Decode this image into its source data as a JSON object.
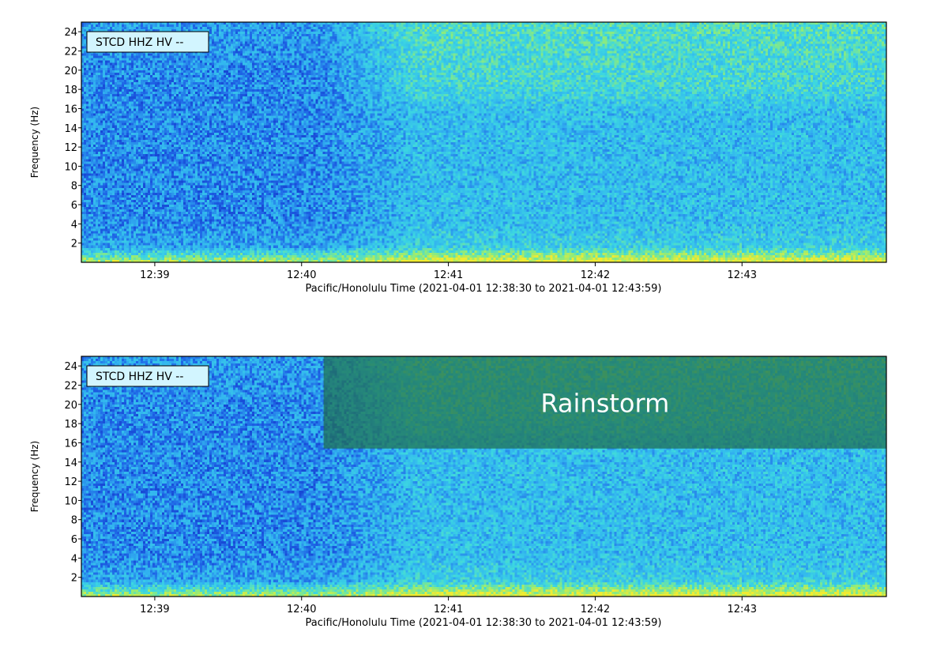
{
  "chart_data": [
    {
      "type": "heatmap",
      "station_label": "STCD HHZ HV --",
      "ylabel": "Frequency (Hz)",
      "xlabel": "Pacific/Honolulu Time (2021-04-01 12:38:30 to 2021-04-01 12:43:59)",
      "x_range": [
        "12:38:30",
        "12:43:59"
      ],
      "ylim": [
        0,
        25
      ],
      "yticks": [
        2,
        4,
        6,
        8,
        10,
        12,
        14,
        16,
        18,
        20,
        22,
        24
      ],
      "xticks": [
        "12:39",
        "12:40",
        "12:41",
        "12:42",
        "12:43"
      ],
      "colormap": [
        "#0a14b4",
        "#1e64e6",
        "#32b4f0",
        "#3cd7e1",
        "#8ceb7d",
        "#f0eb32"
      ],
      "annotations": []
    },
    {
      "type": "heatmap",
      "station_label": "STCD HHZ HV --",
      "ylabel": "Frequency (Hz)",
      "xlabel": "Pacific/Honolulu Time (2021-04-01 12:38:30 to 2021-04-01 12:43:59)",
      "x_range": [
        "12:38:30",
        "12:43:59"
      ],
      "ylim": [
        0,
        25
      ],
      "yticks": [
        2,
        4,
        6,
        8,
        10,
        12,
        14,
        16,
        18,
        20,
        22,
        24
      ],
      "xticks": [
        "12:39",
        "12:40",
        "12:41",
        "12:42",
        "12:43"
      ],
      "colormap": [
        "#0a14b4",
        "#1e64e6",
        "#32b4f0",
        "#3cd7e1",
        "#8ceb7d",
        "#f0eb32"
      ],
      "annotations": [
        {
          "text": "Rainstorm",
          "x_start": "12:40:09",
          "x_end": "12:43:59",
          "y_start": 15.4,
          "y_end": 25,
          "color": "#1f6d4f"
        }
      ]
    }
  ]
}
